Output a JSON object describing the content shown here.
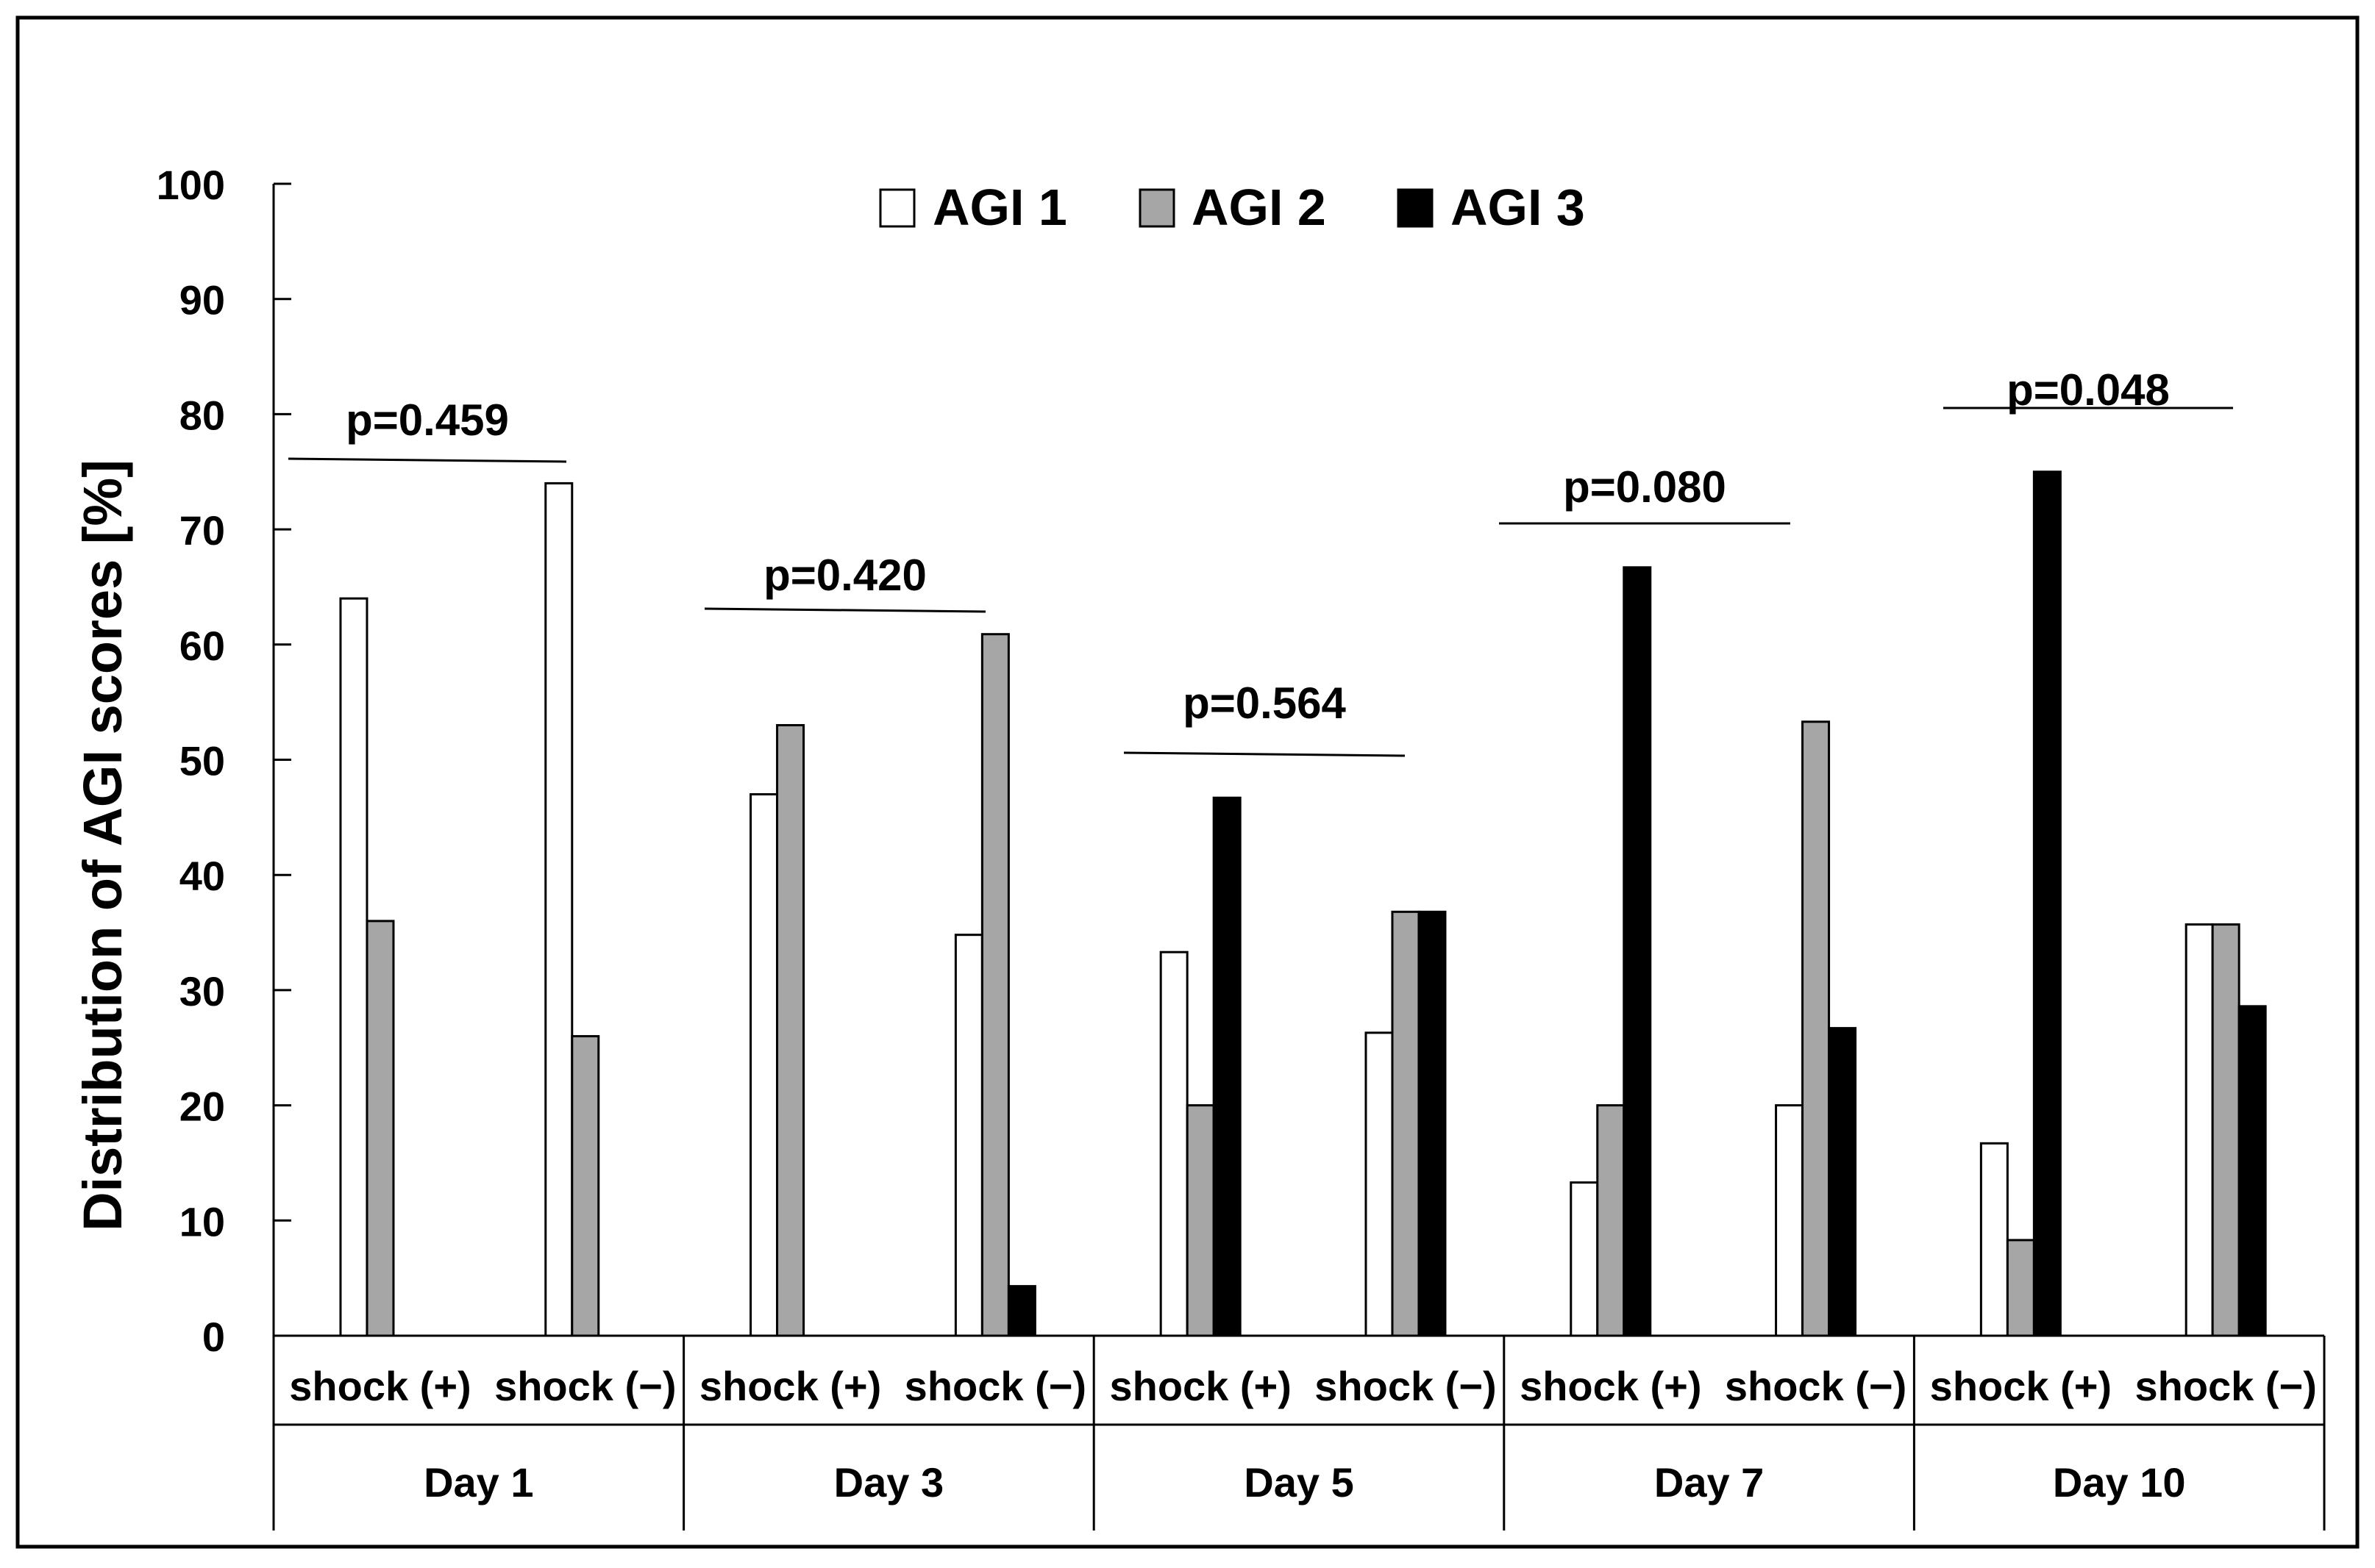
{
  "chart_data": {
    "type": "bar",
    "title": "",
    "ylabel": "Distribution of AGI scores [%]",
    "xlabel": "",
    "ylim": [
      0,
      100
    ],
    "yticks": [
      0,
      10,
      20,
      30,
      40,
      50,
      60,
      70,
      80,
      90,
      100
    ],
    "grid": false,
    "legend_position": "top-center",
    "series": [
      {
        "name": "AGI 1",
        "color": "#ffffff"
      },
      {
        "name": "AGI 2",
        "color": "#a6a6a6"
      },
      {
        "name": "AGI 3",
        "color": "#000000"
      }
    ],
    "groups": [
      {
        "label": "Day 1",
        "p_value": "p=0.459",
        "subgroups": [
          {
            "label": "shock (+)",
            "values": [
              64,
              36,
              0
            ]
          },
          {
            "label": "shock (−)",
            "values": [
              74,
              26,
              0
            ]
          }
        ]
      },
      {
        "label": "Day 3",
        "p_value": "p=0.420",
        "subgroups": [
          {
            "label": "shock (+)",
            "values": [
              47,
              53,
              0
            ]
          },
          {
            "label": "shock (−)",
            "values": [
              34.8,
              60.9,
              4.3
            ]
          }
        ]
      },
      {
        "label": "Day 5",
        "p_value": "p=0.564",
        "subgroups": [
          {
            "label": "shock (+)",
            "values": [
              33.3,
              20,
              46.7
            ]
          },
          {
            "label": "shock (−)",
            "values": [
              26.3,
              36.8,
              36.8
            ]
          }
        ]
      },
      {
        "label": "Day 7",
        "p_value": "p=0.080",
        "subgroups": [
          {
            "label": "shock (+)",
            "values": [
              13.3,
              20,
              66.7
            ]
          },
          {
            "label": "shock (−)",
            "values": [
              20,
              53.3,
              26.7
            ]
          }
        ]
      },
      {
        "label": "Day 10",
        "p_value": "p=0.048",
        "subgroups": [
          {
            "label": "shock (+)",
            "values": [
              16.7,
              8.3,
              75
            ]
          },
          {
            "label": "shock (−)",
            "values": [
              35.7,
              35.7,
              28.6
            ]
          }
        ]
      }
    ]
  }
}
